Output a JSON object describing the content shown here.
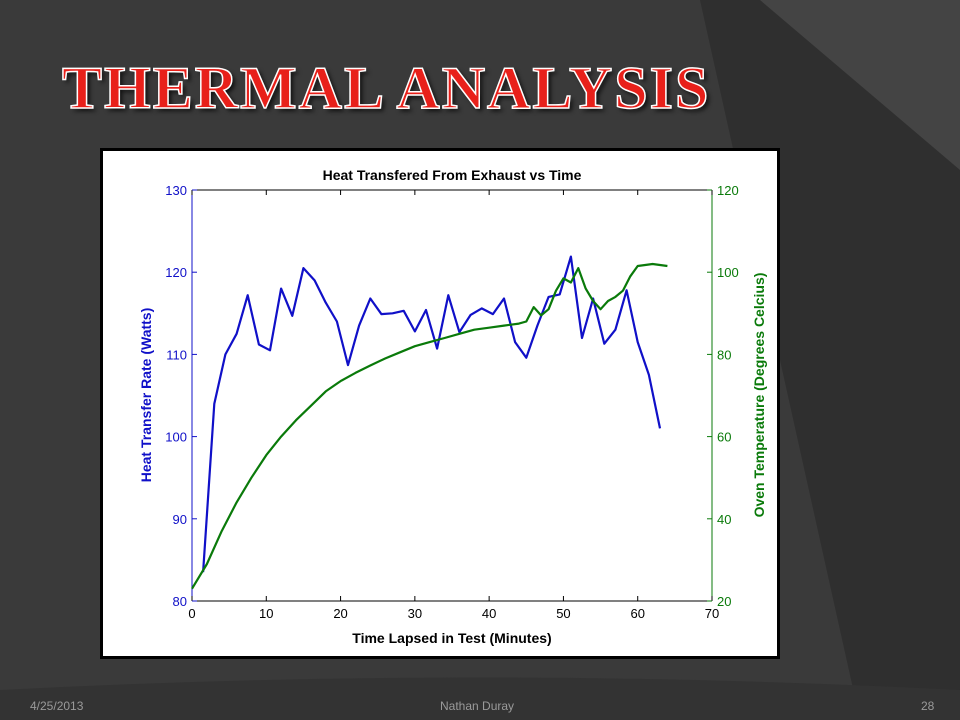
{
  "slide": {
    "title": "THERMAL ANALYSIS",
    "footer_date": "4/25/2013",
    "footer_author": "Nathan Duray",
    "page_number": "28"
  },
  "colors": {
    "background": "#3a3a3a",
    "title": "#e8201a",
    "series_heat": "#1010c8",
    "series_temp": "#0a7a0a"
  },
  "chart_data": {
    "type": "line",
    "title": "Heat Transfered From Exhaust vs Time",
    "xlabel": "Time Lapsed in Test (Minutes)",
    "ylabel_left": "Heat Transfer Rate (Watts)",
    "ylabel_right": "Oven Temperature (Degrees Celcius)",
    "xlim": [
      0,
      70
    ],
    "ylim_left": [
      80,
      130
    ],
    "ylim_right": [
      20,
      120
    ],
    "x_ticks": [
      0,
      10,
      20,
      30,
      40,
      50,
      60,
      70
    ],
    "y_ticks_left": [
      80,
      90,
      100,
      110,
      120,
      130
    ],
    "y_ticks_right": [
      20,
      40,
      60,
      80,
      100,
      120
    ],
    "grid": false,
    "series": [
      {
        "axis": "left",
        "x": [
          1.5,
          3,
          4.5,
          6,
          7.5,
          9,
          10.5,
          12,
          13.5,
          15,
          16.5,
          18,
          19.5,
          21,
          22.5,
          24,
          25.5,
          27,
          28.5,
          30,
          31.5,
          33,
          34.5,
          36,
          37.5,
          39,
          40.5,
          42,
          43.5,
          45,
          46.5,
          48,
          49.5,
          51,
          52.5,
          54,
          55.5,
          57,
          58.5,
          60,
          61.5,
          63
        ],
        "y": [
          83.5,
          104,
          110,
          112.5,
          117.2,
          111.2,
          110.5,
          118,
          114.7,
          120.5,
          119,
          116.3,
          114,
          108.7,
          113.5,
          116.8,
          114.9,
          115,
          115.3,
          112.8,
          115.4,
          110.7,
          117.2,
          112.7,
          114.8,
          115.6,
          114.9,
          116.8,
          111.5,
          109.6,
          113.5,
          117,
          117.3,
          121.9,
          112,
          116.8,
          111.3,
          113,
          117.8,
          111.5,
          107.5,
          101
        ]
      },
      {
        "axis": "right",
        "x": [
          0,
          2,
          4,
          6,
          8,
          10,
          12,
          14,
          16,
          18,
          20,
          22,
          24,
          26,
          28,
          30,
          32,
          34,
          36,
          38,
          40,
          42,
          44,
          45,
          46,
          47,
          48,
          49,
          50,
          51,
          52,
          53,
          54,
          55,
          56,
          57,
          58,
          59,
          60,
          62,
          64
        ],
        "y": [
          23,
          29,
          37,
          44,
          50,
          55.5,
          60,
          64,
          67.5,
          71,
          73.5,
          75.5,
          77.3,
          79,
          80.5,
          82,
          83,
          84,
          85,
          86,
          86.5,
          87,
          87.5,
          88,
          91.5,
          89.5,
          91,
          95.5,
          98.5,
          97.5,
          101,
          96,
          93,
          91,
          93,
          94,
          95.5,
          99,
          101.5,
          102,
          101.5
        ]
      }
    ]
  }
}
